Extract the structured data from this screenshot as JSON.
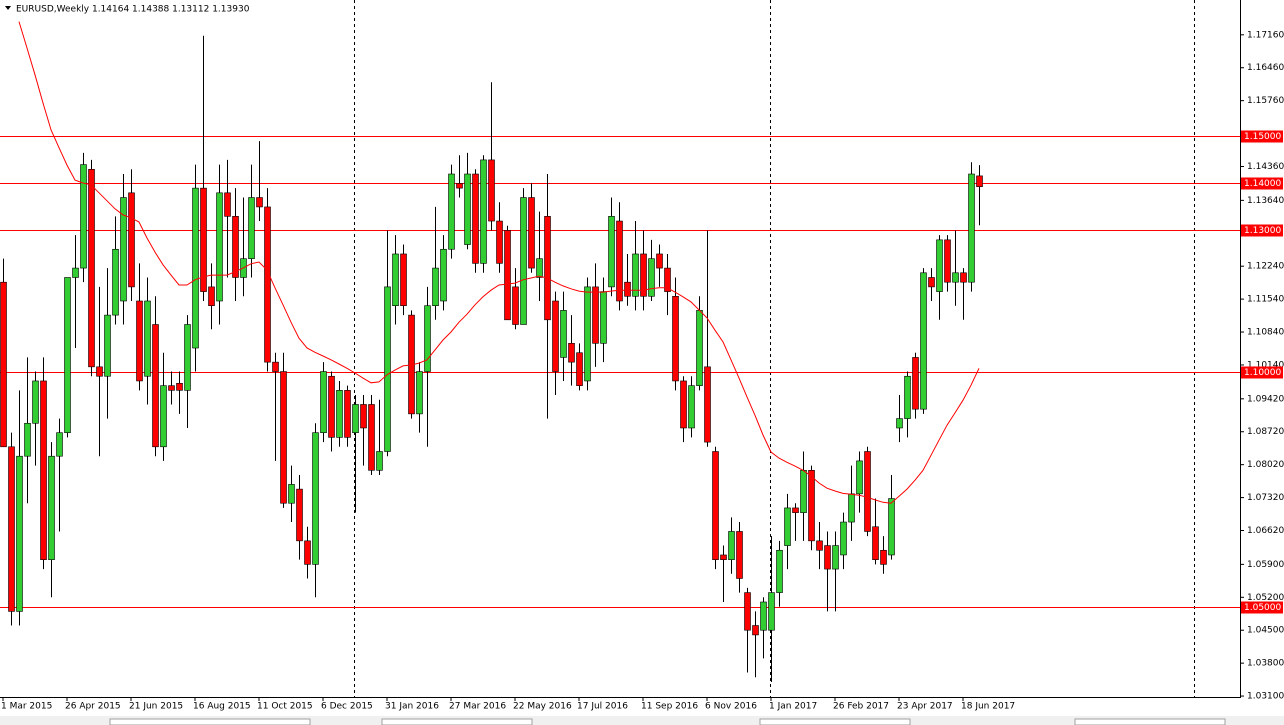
{
  "chart_data": {
    "type": "candlestick",
    "title": "EURUSD,Weekly  1.14164 1.14388 1.13112 1.13930",
    "categories": [
      "1 Mar 2015",
      null,
      null,
      null,
      null,
      null,
      null,
      null,
      "26 Apr 2015",
      null,
      null,
      null,
      null,
      null,
      null,
      null,
      "21 Jun 2015",
      null,
      null,
      null,
      null,
      null,
      null,
      null,
      "16 Aug 2015",
      null,
      null,
      null,
      null,
      null,
      null,
      null,
      "11 Oct 2015",
      null,
      null,
      null,
      null,
      null,
      null,
      null,
      "6 Dec 2015",
      null,
      null,
      null,
      null,
      null,
      null,
      null,
      "31 Jan 2016",
      null,
      null,
      null,
      null,
      null,
      null,
      null,
      "27 Mar 2016",
      null,
      null,
      null,
      null,
      null,
      null,
      null,
      "22 May 2016",
      null,
      null,
      null,
      null,
      null,
      null,
      null,
      "17 Jul 2016",
      null,
      null,
      null,
      null,
      null,
      null,
      null,
      "11 Sep 2016",
      null,
      null,
      null,
      null,
      null,
      null,
      null,
      "6 Nov 2016",
      null,
      null,
      null,
      null,
      null,
      null,
      null,
      "1 Jan 2017",
      null,
      null,
      null,
      null,
      null,
      null,
      null,
      "26 Feb 2017",
      null,
      null,
      null,
      null,
      null,
      null,
      null,
      "23 Apr 2017",
      null,
      null,
      null,
      null,
      null,
      null,
      null,
      "18 Jun 2017",
      null,
      null
    ],
    "open": [
      1.119,
      1.084,
      1.049,
      1.082,
      1.089,
      1.098,
      1.06,
      1.082,
      1.087,
      1.12,
      1.122,
      1.143,
      1.101,
      1.099,
      1.112,
      1.115,
      1.138,
      1.115,
      1.099,
      1.11,
      1.084,
      1.097,
      1.0975,
      1.096,
      1.105,
      1.139,
      1.118,
      1.115,
      1.138,
      1.133,
      1.12,
      1.124,
      1.137,
      1.135,
      1.102,
      1.1,
      1.072,
      1.075,
      1.064,
      1.059,
      1.087,
      1.099,
      1.086,
      1.096,
      1.087,
      1.093,
      1.093,
      1.079,
      1.083,
      1.114,
      1.125,
      1.112,
      1.091,
      1.1,
      1.114,
      1.115,
      1.126,
      1.14,
      1.127,
      1.142,
      1.123,
      1.145,
      1.132,
      1.13,
      1.118,
      1.11,
      1.137,
      1.12,
      1.133,
      1.115,
      1.103,
      1.106,
      1.104,
      1.098,
      1.118,
      1.106,
      1.118,
      1.132,
      1.119,
      1.116,
      1.125,
      1.116,
      1.125,
      1.122,
      1.116,
      1.098,
      1.088,
      1.097,
      1.101,
      1.083,
      1.061,
      1.06,
      1.066,
      1.053,
      1.046,
      1.045,
      1.045,
      1.053,
      1.063,
      1.071,
      1.07,
      1.079,
      1.064,
      1.063,
      1.058,
      1.061,
      1.068,
      1.074,
      1.083,
      1.067,
      1.062,
      1.061,
      1.088,
      1.09,
      1.103,
      1.092,
      1.12,
      1.117,
      1.128,
      1.119,
      1.121,
      1.119,
      1.1416
    ],
    "high": [
      1.124,
      1.087,
      1.096,
      1.103,
      1.1,
      1.103,
      1.085,
      1.09,
      1.12,
      1.129,
      1.1465,
      1.145,
      1.118,
      1.122,
      1.133,
      1.142,
      1.143,
      1.123,
      1.12,
      1.116,
      1.104,
      1.1,
      1.1,
      1.112,
      1.144,
      1.1714,
      1.123,
      1.144,
      1.145,
      1.139,
      1.137,
      1.144,
      1.149,
      1.139,
      1.104,
      1.104,
      1.08,
      1.078,
      1.067,
      1.089,
      1.102,
      1.1,
      1.098,
      1.097,
      1.095,
      1.095,
      1.095,
      1.094,
      1.13,
      1.129,
      1.127,
      1.113,
      1.102,
      1.118,
      1.135,
      1.129,
      1.144,
      1.146,
      1.1465,
      1.143,
      1.146,
      1.1615,
      1.136,
      1.131,
      1.122,
      1.139,
      1.14,
      1.134,
      1.142,
      1.117,
      1.117,
      1.112,
      1.106,
      1.12,
      1.123,
      1.12,
      1.137,
      1.136,
      1.125,
      1.132,
      1.13,
      1.128,
      1.127,
      1.125,
      1.12,
      1.099,
      1.099,
      1.116,
      1.13,
      1.084,
      1.063,
      1.069,
      1.068,
      1.054,
      1.049,
      1.052,
      1.065,
      1.064,
      1.074,
      1.072,
      1.083,
      1.08,
      1.068,
      1.066,
      1.066,
      1.07,
      1.08,
      1.083,
      1.084,
      1.073,
      1.065,
      1.078,
      1.095,
      1.1,
      1.104,
      1.122,
      1.122,
      1.129,
      1.129,
      1.13,
      1.122,
      1.1445,
      1.1439
    ],
    "low": [
      1.084,
      1.046,
      1.046,
      1.072,
      1.08,
      1.058,
      1.052,
      1.066,
      1.086,
      1.105,
      1.119,
      1.099,
      1.082,
      1.09,
      1.11,
      1.11,
      1.115,
      1.096,
      1.093,
      1.082,
      1.081,
      1.093,
      1.091,
      1.088,
      1.1,
      1.115,
      1.109,
      1.11,
      1.12,
      1.115,
      1.116,
      1.12,
      1.132,
      1.1,
      1.081,
      1.071,
      1.068,
      1.06,
      1.056,
      1.052,
      1.085,
      1.083,
      1.084,
      1.084,
      1.07,
      1.08,
      1.078,
      1.078,
      1.082,
      1.11,
      1.112,
      1.09,
      1.087,
      1.084,
      1.111,
      1.113,
      1.124,
      1.137,
      1.126,
      1.121,
      1.121,
      1.13,
      1.121,
      1.111,
      1.109,
      1.11,
      1.121,
      1.115,
      1.09,
      1.095,
      1.098,
      1.097,
      1.096,
      1.096,
      1.101,
      1.102,
      1.116,
      1.113,
      1.114,
      1.113,
      1.113,
      1.115,
      1.118,
      1.112,
      1.096,
      1.085,
      1.086,
      1.096,
      1.084,
      1.058,
      1.051,
      1.057,
      1.053,
      1.036,
      1.035,
      1.039,
      1.034,
      1.05,
      1.058,
      1.064,
      1.064,
      1.062,
      1.058,
      1.049,
      1.049,
      1.058,
      1.064,
      1.07,
      1.065,
      1.059,
      1.057,
      1.06,
      1.085,
      1.086,
      1.09,
      1.091,
      1.115,
      1.111,
      1.117,
      1.114,
      1.111,
      1.117,
      1.1311
    ],
    "close": [
      1.084,
      1.049,
      1.082,
      1.089,
      1.098,
      1.06,
      1.082,
      1.087,
      1.12,
      1.122,
      1.144,
      1.101,
      1.099,
      1.112,
      1.126,
      1.137,
      1.118,
      1.098,
      1.115,
      1.084,
      1.097,
      1.096,
      1.096,
      1.11,
      1.139,
      1.117,
      1.114,
      1.138,
      1.133,
      1.12,
      1.124,
      1.137,
      1.135,
      1.102,
      1.1,
      1.072,
      1.076,
      1.064,
      1.059,
      1.087,
      1.1,
      1.086,
      1.096,
      1.086,
      1.093,
      1.088,
      1.079,
      1.083,
      1.118,
      1.125,
      1.114,
      1.091,
      1.1,
      1.114,
      1.122,
      1.126,
      1.142,
      1.139,
      1.142,
      1.123,
      1.145,
      1.132,
      1.123,
      1.111,
      1.11,
      1.137,
      1.122,
      1.124,
      1.111,
      1.1,
      1.113,
      1.102,
      1.097,
      1.118,
      1.106,
      1.117,
      1.133,
      1.115,
      1.116,
      1.125,
      1.116,
      1.124,
      1.122,
      1.117,
      1.098,
      1.088,
      1.097,
      1.113,
      1.085,
      1.06,
      1.06,
      1.066,
      1.056,
      1.045,
      1.044,
      1.051,
      1.053,
      1.062,
      1.071,
      1.07,
      1.079,
      1.064,
      1.062,
      1.058,
      1.063,
      1.068,
      1.074,
      1.081,
      1.066,
      1.06,
      1.059,
      1.073,
      1.09,
      1.099,
      1.092,
      1.121,
      1.118,
      1.128,
      1.119,
      1.121,
      1.119,
      1.142,
      1.1393
    ],
    "up_color": "#32cd32",
    "down_color": "#ff0000",
    "moving_average": {
      "color": "#ff0000",
      "values": [
        null,
        null,
        1.1744,
        1.1688,
        1.1631,
        1.1571,
        1.1514,
        1.1476,
        1.1439,
        1.1407,
        1.1401,
        1.1397,
        1.138,
        1.1363,
        1.1346,
        1.1333,
        1.1327,
        1.1318,
        1.1284,
        1.1254,
        1.1227,
        1.1205,
        1.1184,
        1.1184,
        1.1195,
        1.1201,
        1.1205,
        1.1205,
        1.1205,
        1.1212,
        1.122,
        1.1229,
        1.1233,
        1.1216,
        1.1178,
        1.1142,
        1.1105,
        1.1071,
        1.105,
        1.1041,
        1.1033,
        1.1025,
        1.1016,
        1.1007,
        1.0997,
        1.0986,
        1.0976,
        1.0978,
        1.0993,
        1.1003,
        1.1012,
        1.1014,
        1.1018,
        1.1025,
        1.1046,
        1.1067,
        1.1084,
        1.1105,
        1.1122,
        1.1142,
        1.1159,
        1.1173,
        1.1184,
        1.1186,
        1.1188,
        1.1195,
        1.1199,
        1.1203,
        1.1199,
        1.119,
        1.1182,
        1.1176,
        1.1171,
        1.1169,
        1.1169,
        1.1169,
        1.1171,
        1.1173,
        1.1173,
        1.1173,
        1.1173,
        1.1176,
        1.1178,
        1.1178,
        1.1169,
        1.1159,
        1.1148,
        1.1131,
        1.1114,
        1.1088,
        1.1063,
        1.1025,
        1.0986,
        1.0946,
        1.0907,
        1.0865,
        1.0829,
        1.0816,
        1.0807,
        1.0799,
        1.079,
        1.0778,
        1.0763,
        1.0752,
        1.0746,
        1.0741,
        1.0739,
        1.0737,
        1.0733,
        1.0727,
        1.0722,
        1.072,
        1.0735,
        1.075,
        1.0769,
        1.079,
        1.0822,
        1.0854,
        1.0886,
        1.0912,
        1.0939,
        1.0971,
        1.1007
      ]
    },
    "levels": [
      {
        "value": 1.15,
        "label": "1.15000"
      },
      {
        "value": 1.14,
        "label": "1.14000"
      },
      {
        "value": 1.13,
        "label": "1.13000"
      },
      {
        "value": 1.1,
        "label": "1.10000"
      },
      {
        "value": 1.05,
        "label": "1.05000"
      }
    ],
    "level_color": "#ff0000",
    "ylim": [
      1.0308,
      1.179
    ],
    "yticks": [
      {
        "value": 1.1716,
        "label": "1.17160"
      },
      {
        "value": 1.1646,
        "label": "1.16460"
      },
      {
        "value": 1.1576,
        "label": "1.15760"
      },
      {
        "value": 1.1436,
        "label": "1.14360"
      },
      {
        "value": 1.1364,
        "label": "1.13640"
      },
      {
        "value": 1.1224,
        "label": "1.12240"
      },
      {
        "value": 1.1154,
        "label": "1.11540"
      },
      {
        "value": 1.1084,
        "label": "1.10840"
      },
      {
        "value": 1.1014,
        "label": "1.10140"
      },
      {
        "value": 1.0942,
        "label": "1.09420"
      },
      {
        "value": 1.0872,
        "label": "1.08720"
      },
      {
        "value": 1.0802,
        "label": "1.08020"
      },
      {
        "value": 1.0732,
        "label": "1.07320"
      },
      {
        "value": 1.0662,
        "label": "1.06620"
      },
      {
        "value": 1.059,
        "label": "1.05900"
      },
      {
        "value": 1.052,
        "label": "1.05200"
      },
      {
        "value": 1.045,
        "label": "1.04500"
      },
      {
        "value": 1.038,
        "label": "1.03800"
      },
      {
        "value": 1.031,
        "label": "1.03100"
      }
    ]
  }
}
